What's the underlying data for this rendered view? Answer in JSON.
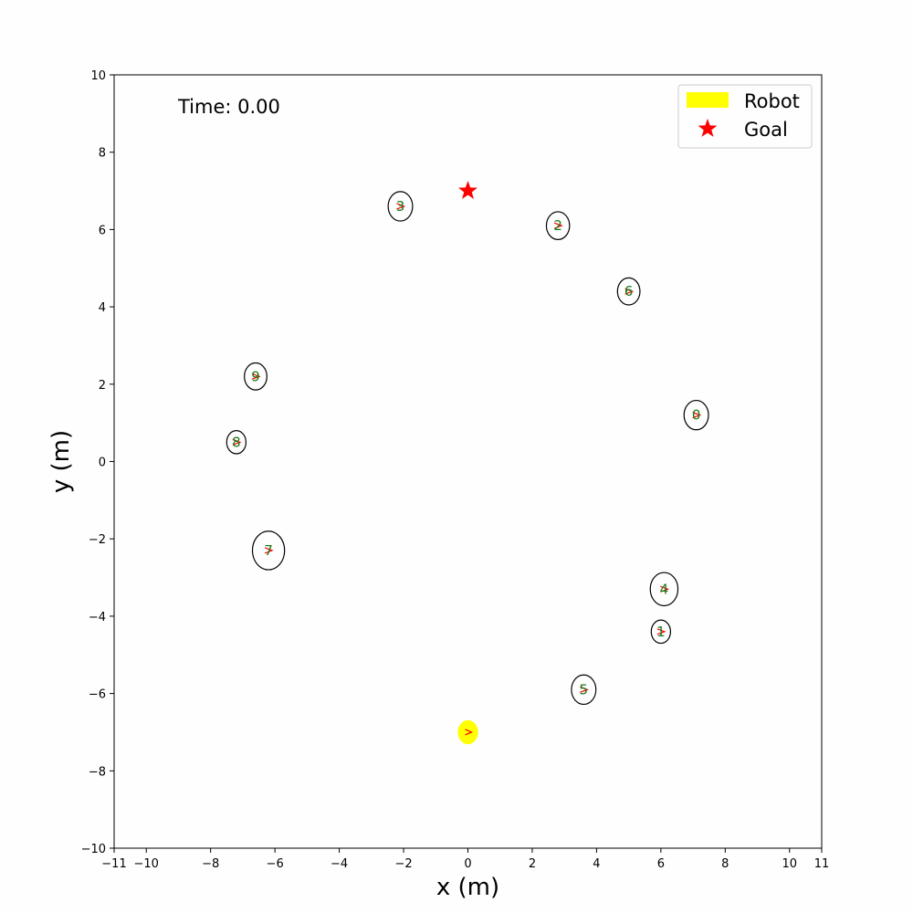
{
  "chart_data": {
    "type": "scatter",
    "title": "",
    "xlabel": "x (m)",
    "ylabel": "y (m)",
    "xlim": [
      -11,
      11
    ],
    "ylim": [
      -10,
      10
    ],
    "x_ticks": [
      -11,
      -10,
      -8,
      -6,
      -4,
      -2,
      0,
      2,
      4,
      6,
      8,
      10,
      11
    ],
    "x_tick_labels": [
      "−11",
      "−10",
      "−8",
      "−6",
      "−4",
      "−2",
      "0",
      "2",
      "4",
      "6",
      "8",
      "10",
      "11"
    ],
    "y_ticks": [
      -10,
      -8,
      -6,
      -4,
      -2,
      0,
      2,
      4,
      6,
      8,
      10
    ],
    "y_tick_labels": [
      "−10",
      "−8",
      "−6",
      "−4",
      "−2",
      "0",
      "2",
      "4",
      "6",
      "8",
      "10"
    ],
    "grid": false,
    "legend_position": "top-right",
    "annotation": "Time: 0.00",
    "legend": [
      {
        "label": "Robot",
        "marker": "patch",
        "color": "#ffff00"
      },
      {
        "label": "Goal",
        "marker": "star",
        "color": "#ff0000"
      }
    ],
    "robot": {
      "x": 0.0,
      "y": -7.0,
      "radius": 0.3,
      "color": "#ffff00",
      "heading_color": "#ff0000"
    },
    "goal": {
      "x": 0.0,
      "y": 7.0,
      "color": "#ff0000"
    },
    "humans": [
      {
        "id": "0",
        "x": 7.1,
        "y": 1.2,
        "radius": 0.38
      },
      {
        "id": "1",
        "x": 6.0,
        "y": -4.4,
        "radius": 0.3
      },
      {
        "id": "2",
        "x": 2.8,
        "y": 6.1,
        "radius": 0.36
      },
      {
        "id": "3",
        "x": -2.1,
        "y": 6.6,
        "radius": 0.38
      },
      {
        "id": "4",
        "x": 6.1,
        "y": -3.3,
        "radius": 0.43
      },
      {
        "id": "5",
        "x": 3.6,
        "y": -5.9,
        "radius": 0.38
      },
      {
        "id": "6",
        "x": 5.0,
        "y": 4.4,
        "radius": 0.35
      },
      {
        "id": "7",
        "x": -6.2,
        "y": -2.3,
        "radius": 0.5
      },
      {
        "id": "8",
        "x": -7.2,
        "y": 0.5,
        "radius": 0.3
      },
      {
        "id": "9",
        "x": -6.6,
        "y": 2.2,
        "radius": 0.35
      }
    ],
    "human_circle_color": "#000000",
    "human_label_color": "#1a7a1a",
    "heading_color": "#ff0000"
  }
}
